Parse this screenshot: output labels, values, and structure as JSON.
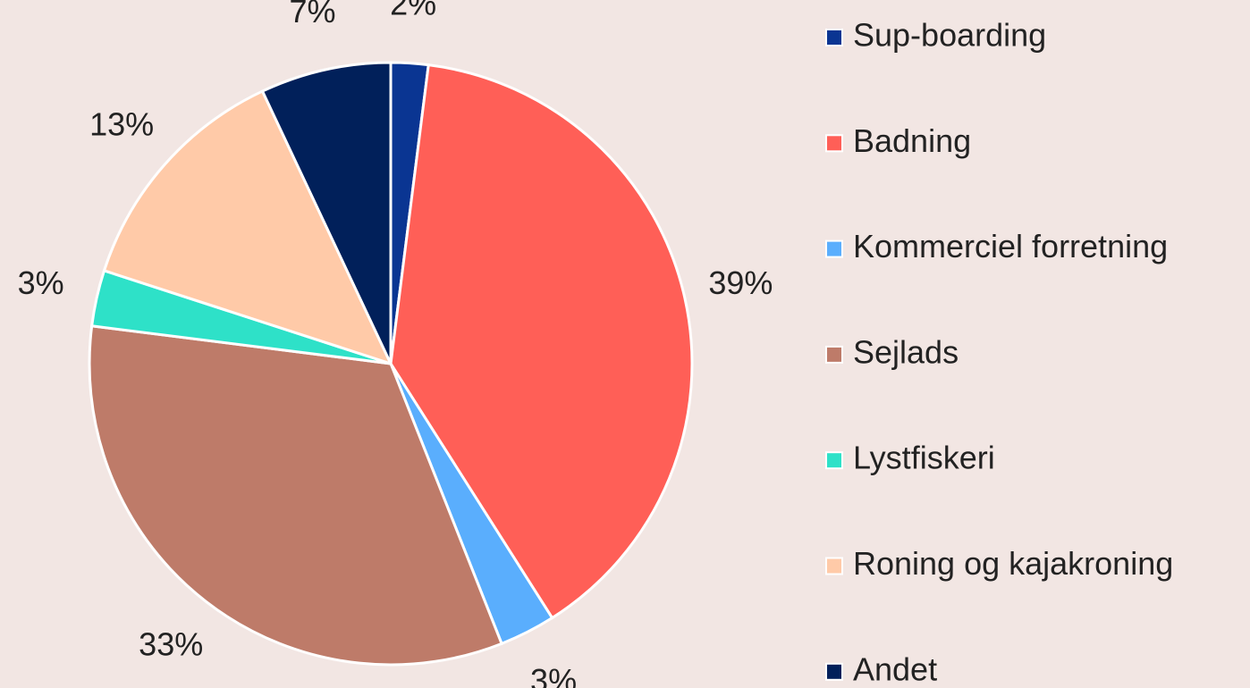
{
  "chart_data": {
    "type": "pie",
    "categories": [
      "Sup-boarding",
      "Badning",
      "Kommerciel forretning",
      "Sejlads",
      "Lystfiskeri",
      "Roning og kajakroning",
      "Andet"
    ],
    "values": [
      2,
      39,
      3,
      33,
      3,
      13,
      7
    ],
    "value_labels": [
      "2%",
      "39%",
      "3%",
      "33%",
      "3%",
      "13%",
      "7%"
    ],
    "colors": [
      "#0a3592",
      "#ff5f57",
      "#5aaefd",
      "#be7b69",
      "#2ee1c8",
      "#ffcaa8",
      "#01205a"
    ],
    "legend": "right"
  }
}
